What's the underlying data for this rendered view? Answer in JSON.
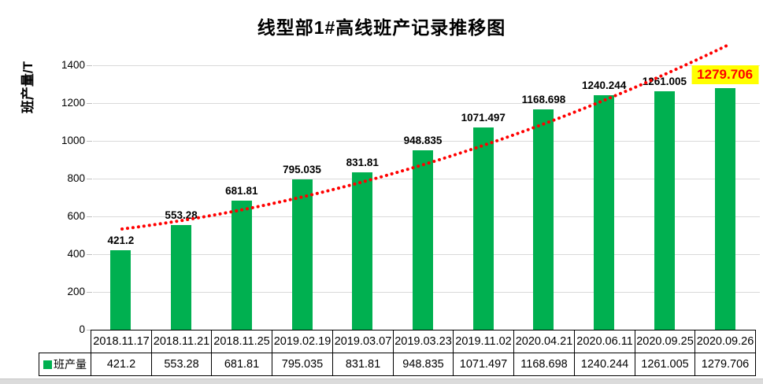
{
  "title": "线型部1#高线班产记录推移图",
  "y_axis_title": "班产量/T",
  "legend_label": "班产量",
  "colors": {
    "bar": "#00B050",
    "trendline": "#FF0000",
    "highlight_background": "#FFFF00",
    "highlight_text": "#FF0000",
    "gridline": "#D9D9D9",
    "table_border": "#000000"
  },
  "chart_data": {
    "type": "bar",
    "title": "线型部1#高线班产记录推移图",
    "xlabel": "",
    "ylabel": "班产量/T",
    "categories": [
      "2018.11.17",
      "2018.11.21",
      "2018.11.25",
      "2019.02.19",
      "2019.03.07",
      "2019.03.23",
      "2019.11.02",
      "2020.04.21",
      "2020.06.11",
      "2020.09.25",
      "2020.09.26"
    ],
    "series": [
      {
        "name": "班产量",
        "values": [
          421.2,
          553.28,
          681.81,
          795.035,
          831.81,
          948.835,
          1071.497,
          1168.698,
          1240.244,
          1261.005,
          1279.706
        ]
      }
    ],
    "value_labels": [
      "421.2",
      "553.28",
      "681.81",
      "795.035",
      "831.81",
      "948.835",
      "1071.497",
      "1168.698",
      "1240.244",
      "1261.005",
      "1279.706"
    ],
    "ylim": [
      0,
      1400
    ],
    "yticks": [
      0,
      200,
      400,
      600,
      800,
      1000,
      1200,
      1400
    ],
    "grid": true,
    "legend_position": "bottom-table",
    "data_table": true,
    "trendline": {
      "style": "dotted",
      "color": "#FF0000"
    },
    "highlight": {
      "index": 10,
      "background": "#FFFF00",
      "text_color": "#FF0000"
    }
  }
}
